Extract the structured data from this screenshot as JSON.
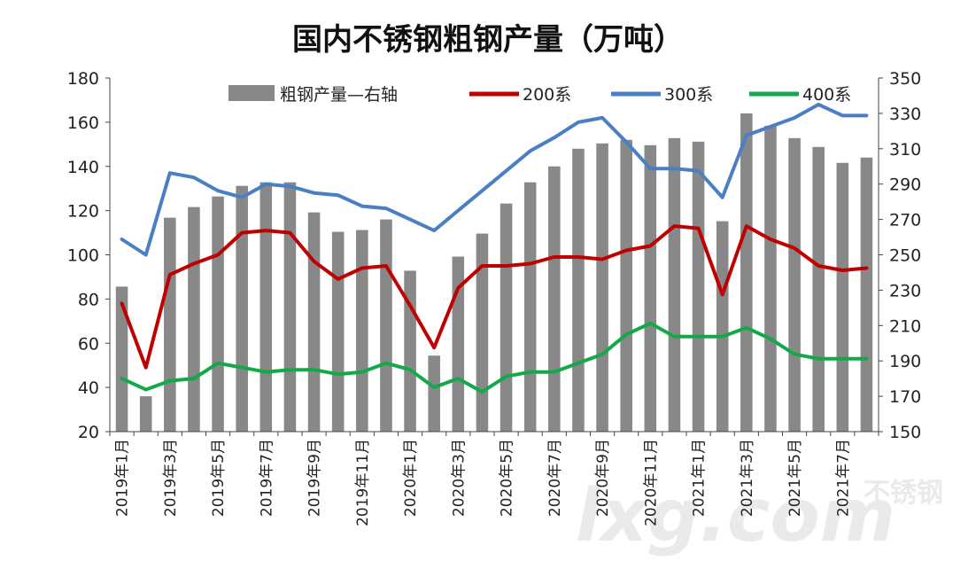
{
  "chart_data": {
    "type": "bar",
    "title": "国内不锈钢粗钢产量（万吨）",
    "categories": [
      "2019年1月",
      "2019年2月",
      "2019年3月",
      "2019年4月",
      "2019年5月",
      "2019年6月",
      "2019年7月",
      "2019年8月",
      "2019年9月",
      "2019年10月",
      "2019年11月",
      "2019年12月",
      "2020年1月",
      "2020年2月",
      "2020年3月",
      "2020年4月",
      "2020年5月",
      "2020年6月",
      "2020年7月",
      "2020年8月",
      "2020年9月",
      "2020年10月",
      "2020年11月",
      "2020年12月",
      "2021年1月",
      "2021年2月",
      "2021年3月",
      "2021年4月",
      "2021年5月",
      "2021年6月",
      "2021年7月",
      "2021年8月"
    ],
    "x_tick_labels": [
      "2019年1月",
      "2019年3月",
      "2019年5月",
      "2019年7月",
      "2019年9月",
      "2019年11月",
      "2020年1月",
      "2020年3月",
      "2020年5月",
      "2020年7月",
      "2020年9月",
      "2020年11月",
      "2021年1月",
      "2021年3月",
      "2021年5月",
      "2021年7月"
    ],
    "left_axis": {
      "ylim": [
        20,
        180
      ],
      "ticks": [
        20,
        40,
        60,
        80,
        100,
        120,
        140,
        160,
        180
      ]
    },
    "right_axis": {
      "ylim": [
        150,
        350
      ],
      "ticks": [
        150,
        170,
        190,
        210,
        230,
        250,
        270,
        290,
        310,
        330,
        350
      ]
    },
    "legend_position": "top",
    "series": [
      {
        "name": "粗钢产量—右轴",
        "type": "bar",
        "axis": "right",
        "color": "#888888",
        "values": [
          232,
          170,
          271,
          277,
          283,
          289,
          291,
          291,
          274,
          263,
          264,
          270,
          241,
          193,
          249,
          262,
          279,
          291,
          300,
          310,
          313,
          315,
          312,
          316,
          314,
          269,
          330,
          323,
          316,
          311,
          302,
          305
        ]
      },
      {
        "name": "200系",
        "type": "line",
        "axis": "left",
        "color": "#C00000",
        "values": [
          78,
          49,
          91,
          96,
          100,
          110,
          111,
          110,
          97,
          89,
          94,
          95,
          77,
          58,
          85,
          95,
          95,
          96,
          99,
          99,
          98,
          102,
          104,
          113,
          112,
          82,
          113,
          107,
          103,
          95,
          93,
          94
        ]
      },
      {
        "name": "300系",
        "type": "line",
        "axis": "left",
        "color": "#4A7FC6",
        "values": [
          107,
          100,
          137,
          135,
          129,
          126,
          132,
          131,
          128,
          127,
          122,
          121,
          116,
          111,
          120,
          129,
          138,
          147,
          153,
          160,
          162,
          151,
          139,
          139,
          138,
          126,
          154,
          158,
          162,
          168,
          163,
          163
        ]
      },
      {
        "name": "400系",
        "type": "line",
        "axis": "left",
        "color": "#14A84B",
        "values": [
          44,
          39,
          43,
          44,
          51,
          49,
          47,
          48,
          48,
          46,
          47,
          51,
          48,
          40,
          44,
          38,
          45,
          47,
          47,
          51,
          55,
          64,
          69,
          63,
          63,
          63,
          67,
          62,
          55,
          53,
          53,
          53
        ]
      }
    ]
  },
  "watermark": {
    "main": "lxg.com",
    "sub": "不锈钢"
  }
}
